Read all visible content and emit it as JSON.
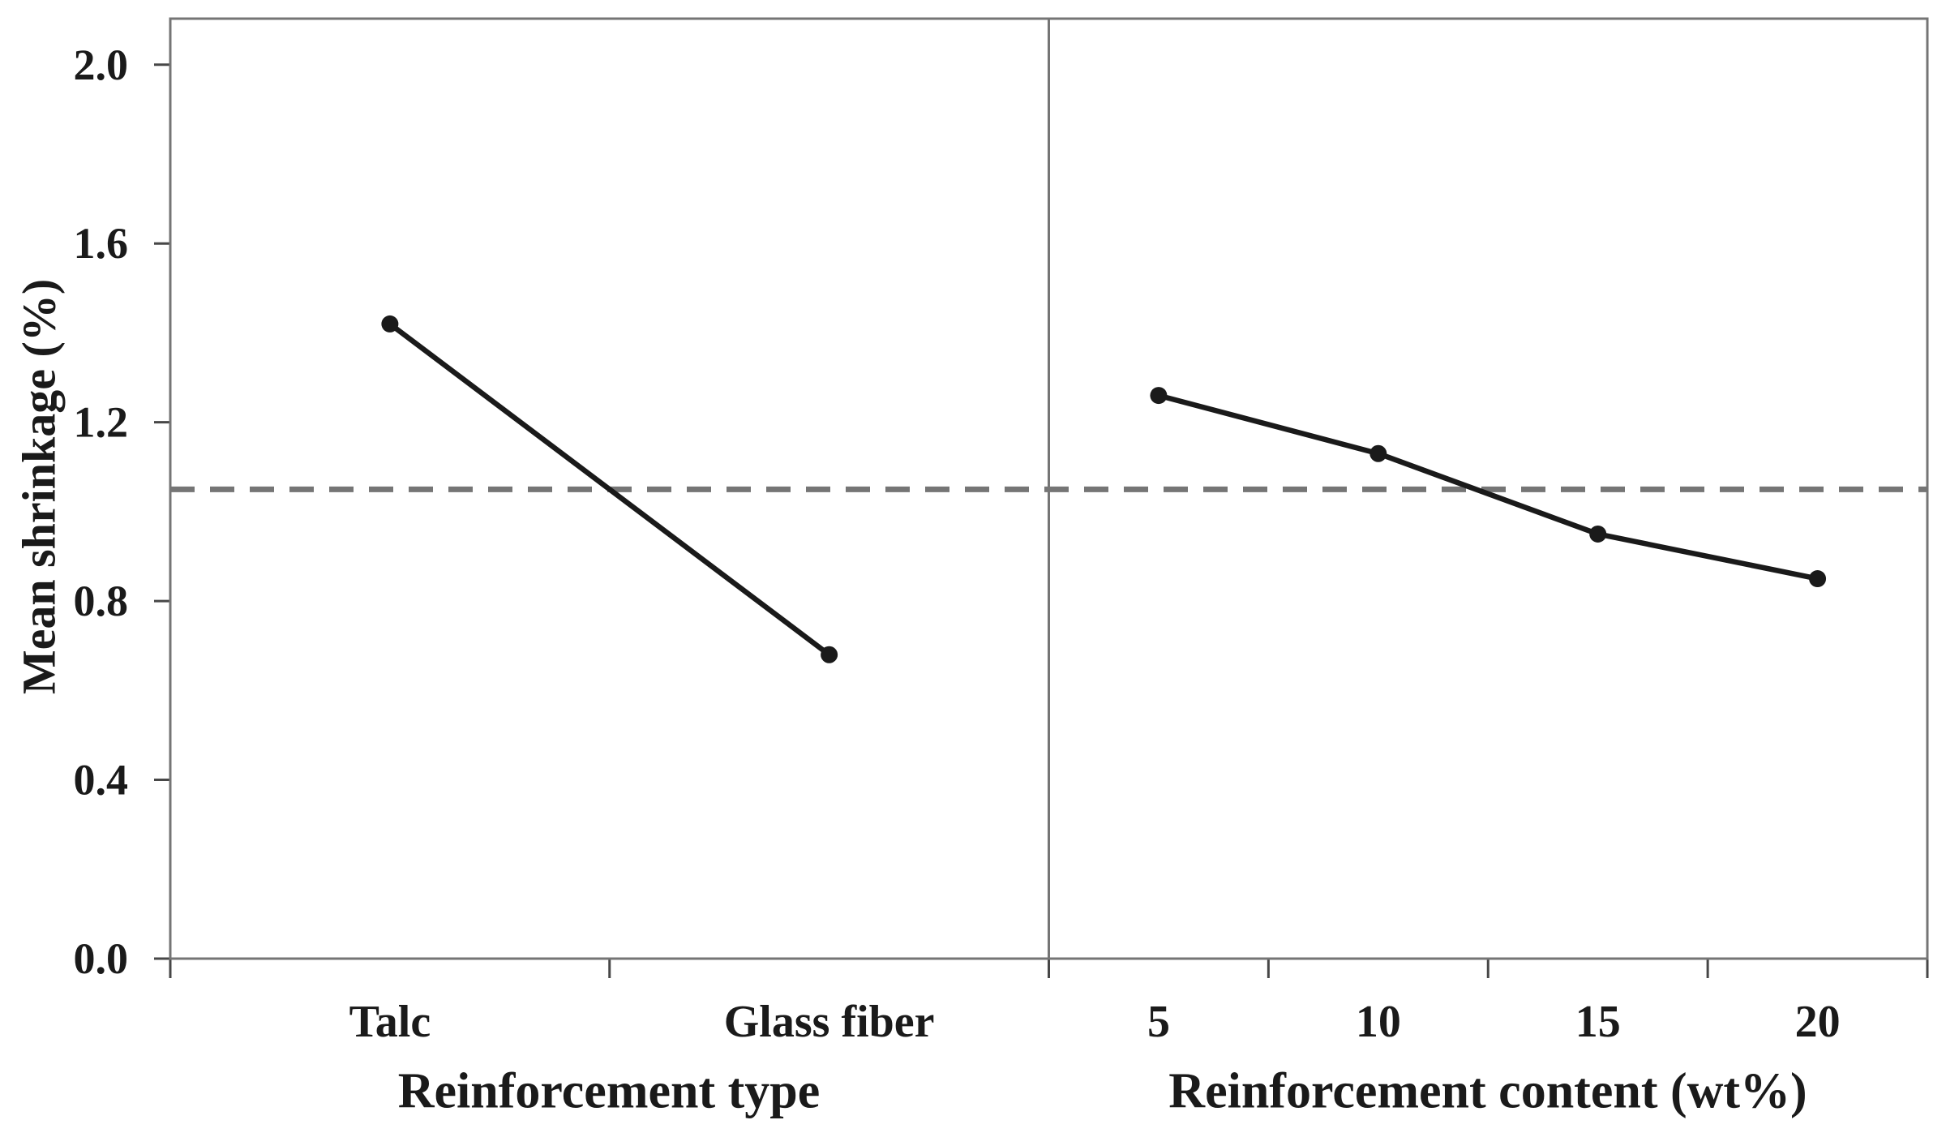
{
  "chart_data": {
    "type": "line",
    "subtype": "main-effects-plot",
    "title": "",
    "ylabel": "Mean shrinkage (%)",
    "ylim": [
      0.0,
      2.103
    ],
    "ytick_labels": [
      "0.0",
      "0.4",
      "0.8",
      "1.2",
      "1.6",
      "2.0"
    ],
    "grand_mean": 1.05,
    "grid": false,
    "legend": "none",
    "panels": [
      {
        "xlabel": "Reinforcement type",
        "categories": [
          "Talc",
          "Glass fiber"
        ],
        "values": [
          1.42,
          0.68
        ]
      },
      {
        "xlabel": "Reinforcement content (wt%)",
        "categories": [
          "5",
          "10",
          "15",
          "20"
        ],
        "values": [
          1.26,
          1.13,
          0.95,
          0.85
        ]
      }
    ],
    "colors": {
      "series": "#1a1a1a",
      "mean_line": "#757575",
      "frame": "#757575",
      "tick": "#474747",
      "text": "#1a1a1a",
      "background": "#ffffff"
    }
  }
}
